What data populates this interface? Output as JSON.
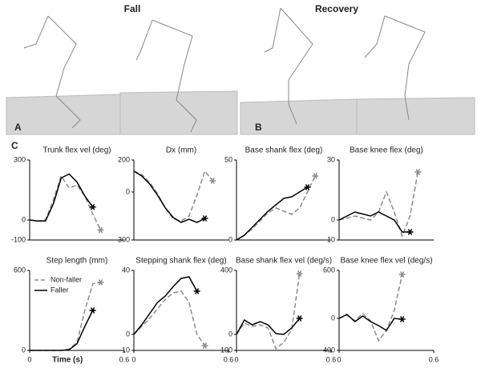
{
  "figure": {
    "fall": "Fall",
    "recovery": "Recovery",
    "panel_a": "A",
    "panel_b": "B",
    "panel_c": "C"
  },
  "chart_data": [
    {
      "type": "line",
      "title": "Trunk flex vel (deg)",
      "x": [
        0,
        0.05,
        0.1,
        0.15,
        0.2,
        0.25,
        0.3,
        0.35,
        0.4,
        0.45,
        0.5
      ],
      "xlim": [
        0,
        0.6
      ],
      "ylim": [
        -100,
        300
      ],
      "yticks": [
        -100,
        0,
        300
      ],
      "series": [
        {
          "name": "Non-faller",
          "color": "#8c8c8c",
          "linestyle": "dashed",
          "values": [
            0,
            -5,
            0,
            100,
            220,
            160,
            175,
            120,
            30,
            -50,
            null
          ]
        },
        {
          "name": "Faller",
          "color": "#000000",
          "linestyle": "solid",
          "values": [
            0,
            -5,
            -5,
            80,
            210,
            230,
            190,
            120,
            65,
            null,
            null
          ]
        }
      ]
    },
    {
      "type": "line",
      "title": "Dx (mm)",
      "x": [
        0,
        0.05,
        0.1,
        0.15,
        0.2,
        0.25,
        0.3,
        0.35,
        0.4,
        0.45,
        0.5
      ],
      "xlim": [
        0,
        0.6
      ],
      "ylim": [
        -300,
        200
      ],
      "yticks": [
        -300,
        0,
        200
      ],
      "series": [
        {
          "name": "Non-faller",
          "color": "#8c8c8c",
          "linestyle": "dashed",
          "values": [
            130,
            110,
            60,
            -10,
            -100,
            -170,
            -180,
            -150,
            -20,
            130,
            70
          ]
        },
        {
          "name": "Faller",
          "color": "#000000",
          "linestyle": "solid",
          "values": [
            130,
            100,
            50,
            -20,
            -100,
            -160,
            -190,
            -170,
            -190,
            -165,
            null
          ]
        }
      ]
    },
    {
      "type": "line",
      "title": "Base shank flex (deg)",
      "x": [
        0,
        0.05,
        0.1,
        0.15,
        0.2,
        0.25,
        0.3,
        0.35,
        0.4,
        0.45,
        0.5
      ],
      "xlim": [
        0,
        0.6
      ],
      "ylim": [
        0,
        50
      ],
      "yticks": [
        0,
        50
      ],
      "series": [
        {
          "name": "Non-faller",
          "color": "#8c8c8c",
          "linestyle": "dashed",
          "values": [
            0,
            3,
            7,
            12,
            17,
            20,
            18,
            16,
            20,
            30,
            40
          ]
        },
        {
          "name": "Faller",
          "color": "#000000",
          "linestyle": "solid",
          "values": [
            0,
            3,
            8,
            13,
            18,
            22,
            26,
            27,
            30,
            33,
            null
          ]
        }
      ]
    },
    {
      "type": "line",
      "title": "Base knee flex (deg)",
      "x": [
        0,
        0.05,
        0.1,
        0.15,
        0.2,
        0.25,
        0.3,
        0.35,
        0.4,
        0.45,
        0.5
      ],
      "xlim": [
        0,
        0.6
      ],
      "ylim": [
        -10,
        30
      ],
      "yticks": [
        -10,
        0,
        30
      ],
      "series": [
        {
          "name": "Non-faller",
          "color": "#8c8c8c",
          "linestyle": "dashed",
          "values": [
            0,
            1,
            2,
            1,
            0,
            4,
            14,
            4,
            -8,
            2,
            24
          ]
        },
        {
          "name": "Faller",
          "color": "#000000",
          "linestyle": "solid",
          "values": [
            0,
            2,
            4,
            3,
            2,
            4,
            2,
            0,
            -6,
            -6,
            null
          ]
        }
      ]
    },
    {
      "type": "line",
      "title": "Step length (mm)",
      "x": [
        0,
        0.05,
        0.1,
        0.15,
        0.2,
        0.25,
        0.3,
        0.35,
        0.4,
        0.45,
        0.5
      ],
      "xlim": [
        0,
        0.6
      ],
      "ylim": [
        0,
        600
      ],
      "yticks": [
        0,
        600
      ],
      "xticks": [
        0,
        0.6
      ],
      "xlabel": "Time (s)",
      "legend": "upper left",
      "series": [
        {
          "name": "Non-faller",
          "color": "#8c8c8c",
          "linestyle": "dashed",
          "values": [
            0,
            0,
            0,
            0,
            0,
            10,
            60,
            300,
            500,
            510,
            null
          ]
        },
        {
          "name": "Faller",
          "color": "#000000",
          "linestyle": "solid",
          "values": [
            0,
            0,
            0,
            0,
            0,
            5,
            50,
            180,
            300,
            null,
            null
          ]
        }
      ]
    },
    {
      "type": "line",
      "title": "Stepping shank flex (deg)",
      "x": [
        0,
        0.05,
        0.1,
        0.15,
        0.2,
        0.25,
        0.3,
        0.35,
        0.4,
        0.45,
        0.5
      ],
      "xlim": [
        0,
        0.6
      ],
      "ylim": [
        -10,
        40
      ],
      "yticks": [
        -10,
        0,
        40
      ],
      "xticks": [
        0,
        0.6
      ],
      "series": [
        {
          "name": "Non-faller",
          "color": "#8c8c8c",
          "linestyle": "dashed",
          "values": [
            0,
            5,
            10,
            16,
            22,
            26,
            27,
            20,
            0,
            -7,
            null
          ]
        },
        {
          "name": "Faller",
          "color": "#000000",
          "linestyle": "solid",
          "values": [
            0,
            6,
            13,
            20,
            24,
            30,
            35,
            36,
            27,
            null,
            null
          ]
        }
      ]
    },
    {
      "type": "line",
      "title": "Base shank flex vel (deg/s)",
      "x": [
        0,
        0.05,
        0.1,
        0.15,
        0.2,
        0.25,
        0.3,
        0.35,
        0.4,
        0.45,
        0.5
      ],
      "xlim": [
        0,
        0.6
      ],
      "ylim": [
        -100,
        400
      ],
      "yticks": [
        -100,
        0,
        400
      ],
      "xticks": [
        0,
        0.6
      ],
      "series": [
        {
          "name": "Non-faller",
          "color": "#8c8c8c",
          "linestyle": "dashed",
          "values": [
            0,
            70,
            50,
            60,
            40,
            -90,
            -50,
            30,
            380,
            null,
            null
          ]
        },
        {
          "name": "Faller",
          "color": "#000000",
          "linestyle": "solid",
          "values": [
            0,
            90,
            60,
            80,
            60,
            5,
            0,
            40,
            100,
            null,
            null
          ]
        }
      ]
    },
    {
      "type": "line",
      "title": "Base knee flex vel (deg/s)",
      "x": [
        0,
        0.05,
        0.1,
        0.15,
        0.2,
        0.25,
        0.3,
        0.35,
        0.4,
        0.45,
        0.5
      ],
      "xlim": [
        0,
        0.6
      ],
      "ylim": [
        -400,
        600
      ],
      "yticks": [
        -400,
        0,
        600
      ],
      "xticks": [
        0,
        0.6
      ],
      "series": [
        {
          "name": "Non-faller",
          "color": "#8c8c8c",
          "linestyle": "dashed",
          "values": [
            0,
            40,
            -30,
            60,
            -30,
            -280,
            -150,
            100,
            550,
            null,
            null
          ]
        },
        {
          "name": "Faller",
          "color": "#000000",
          "linestyle": "solid",
          "values": [
            0,
            50,
            -40,
            30,
            -40,
            -90,
            -150,
            0,
            -10,
            null,
            null
          ]
        }
      ]
    }
  ]
}
